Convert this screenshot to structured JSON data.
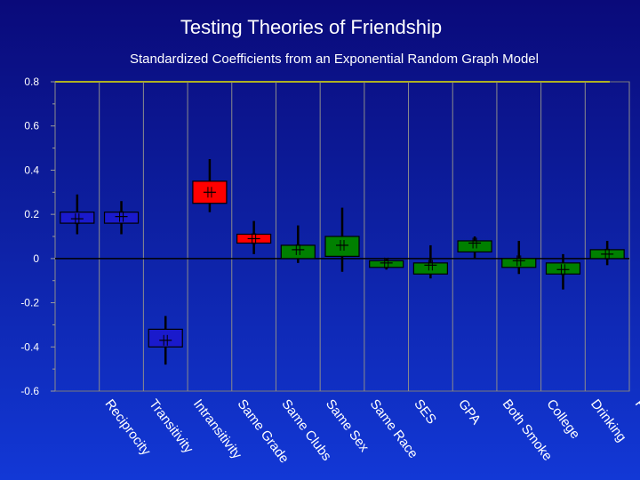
{
  "slide_title": "Testing Theories of Friendship",
  "chart_data": {
    "type": "box",
    "title": "Standardized Coefficients from an Exponential Random Graph Model",
    "ylim": [
      -0.6,
      0.8
    ],
    "yticks": [
      0.8,
      0.6,
      0.4,
      0.2,
      0,
      -0.2,
      -0.4,
      -0.6
    ],
    "ytick_labels": [
      "0.8",
      "0.6",
      "0.4",
      "0.2",
      "0",
      "-0.2",
      "-0.4",
      "-0.6"
    ],
    "grid": true,
    "categories": [
      "Reciprocity",
      "Transitivity",
      "Intransitivity",
      "Same Grade",
      "Same Clubs",
      "Same Sex",
      "Same Race",
      "SES",
      "GPA",
      "Both Smoke",
      "College",
      "Drinking",
      "Fight"
    ],
    "boxes": [
      {
        "low": 0.11,
        "q1": 0.16,
        "mean": 0.18,
        "q3": 0.21,
        "high": 0.29,
        "color": "#1a1acc"
      },
      {
        "low": 0.11,
        "q1": 0.16,
        "mean": 0.19,
        "q3": 0.21,
        "high": 0.26,
        "color": "#1a1acc"
      },
      {
        "low": -0.48,
        "q1": -0.4,
        "mean": -0.37,
        "q3": -0.32,
        "high": -0.26,
        "color": "#1a1acc"
      },
      {
        "low": 0.21,
        "q1": 0.25,
        "mean": 0.3,
        "q3": 0.35,
        "high": 0.45,
        "color": "#ff0000"
      },
      {
        "low": 0.02,
        "q1": 0.07,
        "mean": 0.09,
        "q3": 0.11,
        "high": 0.17,
        "color": "#ff0000"
      },
      {
        "low": -0.02,
        "q1": 0.0,
        "mean": 0.04,
        "q3": 0.06,
        "high": 0.15,
        "color": "#008000"
      },
      {
        "low": -0.06,
        "q1": 0.01,
        "mean": 0.06,
        "q3": 0.1,
        "high": 0.23,
        "color": "#008000"
      },
      {
        "low": -0.05,
        "q1": -0.04,
        "mean": -0.02,
        "q3": -0.01,
        "high": 0.0,
        "color": "#008000"
      },
      {
        "low": -0.09,
        "q1": -0.07,
        "mean": -0.03,
        "q3": -0.02,
        "high": 0.06,
        "color": "#008000"
      },
      {
        "low": 0.0,
        "q1": 0.03,
        "mean": 0.07,
        "q3": 0.08,
        "high": 0.1,
        "color": "#008000"
      },
      {
        "low": -0.07,
        "q1": -0.04,
        "mean": -0.01,
        "q3": 0.0,
        "high": 0.08,
        "color": "#008000"
      },
      {
        "low": -0.14,
        "q1": -0.07,
        "mean": -0.05,
        "q3": -0.02,
        "high": 0.02,
        "color": "#008000"
      },
      {
        "low": -0.03,
        "q1": 0.0,
        "mean": 0.02,
        "q3": 0.04,
        "high": 0.08,
        "color": "#008000"
      }
    ]
  }
}
